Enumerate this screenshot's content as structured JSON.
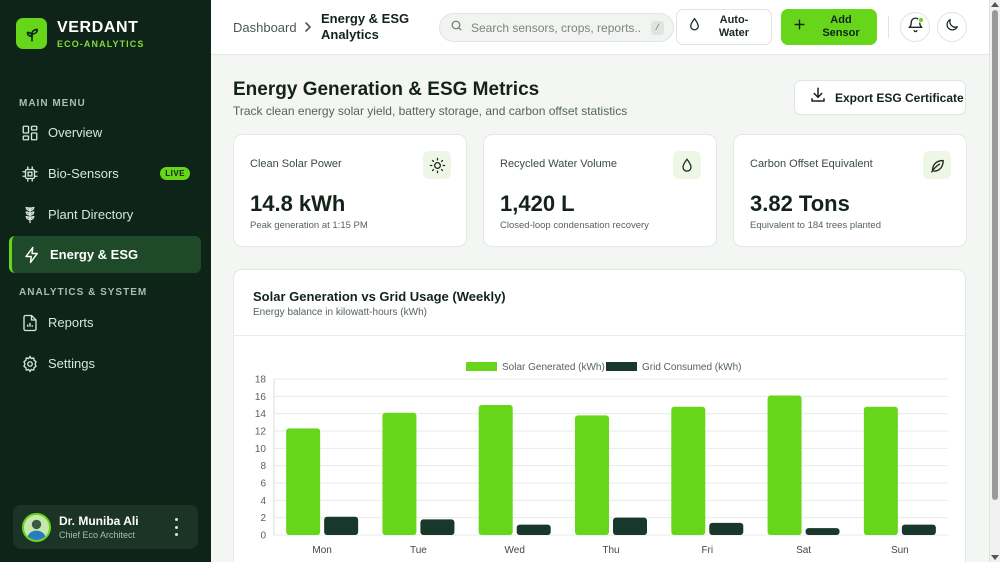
{
  "brand": {
    "name": "VERDANT",
    "subtitle": "ECO-ANALYTICS"
  },
  "sidebar": {
    "main_menu_label": "MAIN MENU",
    "analytics_label": "ANALYTICS & SYSTEM",
    "items": [
      {
        "label": "Overview",
        "icon": "grid-icon"
      },
      {
        "label": "Bio-Sensors",
        "icon": "chip-icon",
        "badge": "LIVE"
      },
      {
        "label": "Plant Directory",
        "icon": "plant-icon"
      },
      {
        "label": "Energy & ESG",
        "icon": "bolt-icon",
        "active": true
      },
      {
        "label": "Reports",
        "icon": "report-icon"
      },
      {
        "label": "Settings",
        "icon": "gear-icon"
      }
    ]
  },
  "user": {
    "name": "Dr. Muniba Ali",
    "role": "Chief Eco Architect"
  },
  "topbar": {
    "breadcrumb_root": "Dashboard",
    "breadcrumb_current": "Energy & ESG Analytics",
    "search_placeholder": "Search sensors, crops, reports...",
    "search_shortcut": "/",
    "auto_water_label": "Auto-Water",
    "add_sensor_label": "Add Sensor"
  },
  "page": {
    "title": "Energy Generation & ESG Metrics",
    "subtitle": "Track clean energy solar yield, battery storage, and carbon offset statistics",
    "export_label": "Export ESG Certificate"
  },
  "stats": [
    {
      "label": "Clean Solar Power",
      "value": "14.8 kWh",
      "desc": "Peak generation at 1:15 PM",
      "icon": "sun-icon"
    },
    {
      "label": "Recycled Water Volume",
      "value": "1,420 L",
      "desc": "Closed-loop condensation recovery",
      "icon": "droplet-icon"
    },
    {
      "label": "Carbon Offset Equivalent",
      "value": "3.82 Tons",
      "desc": "Equivalent to 184 trees planted",
      "icon": "leaf-icon"
    }
  ],
  "colors": {
    "accent": "#67d61a",
    "sidebar_bg": "#0f2418",
    "grid_series": "#17382a"
  },
  "chart_data": {
    "type": "bar",
    "title": "Solar Generation vs Grid Usage (Weekly)",
    "subtitle": "Energy balance in kilowatt-hours (kWh)",
    "categories": [
      "Mon",
      "Tue",
      "Wed",
      "Thu",
      "Fri",
      "Sat",
      "Sun"
    ],
    "series": [
      {
        "name": "Solar Generated (kWh)",
        "color": "#67d61a",
        "values": [
          12.3,
          14.1,
          15.0,
          13.8,
          14.8,
          16.1,
          14.8
        ]
      },
      {
        "name": "Grid Consumed (kWh)",
        "color": "#17382a",
        "values": [
          2.1,
          1.8,
          1.2,
          2.0,
          1.4,
          0.8,
          1.2
        ]
      }
    ],
    "yticks": [
      0,
      2,
      4,
      6,
      8,
      10,
      12,
      14,
      16,
      18
    ],
    "ylim": [
      0,
      18
    ],
    "grid": true,
    "legend": "top-center"
  }
}
